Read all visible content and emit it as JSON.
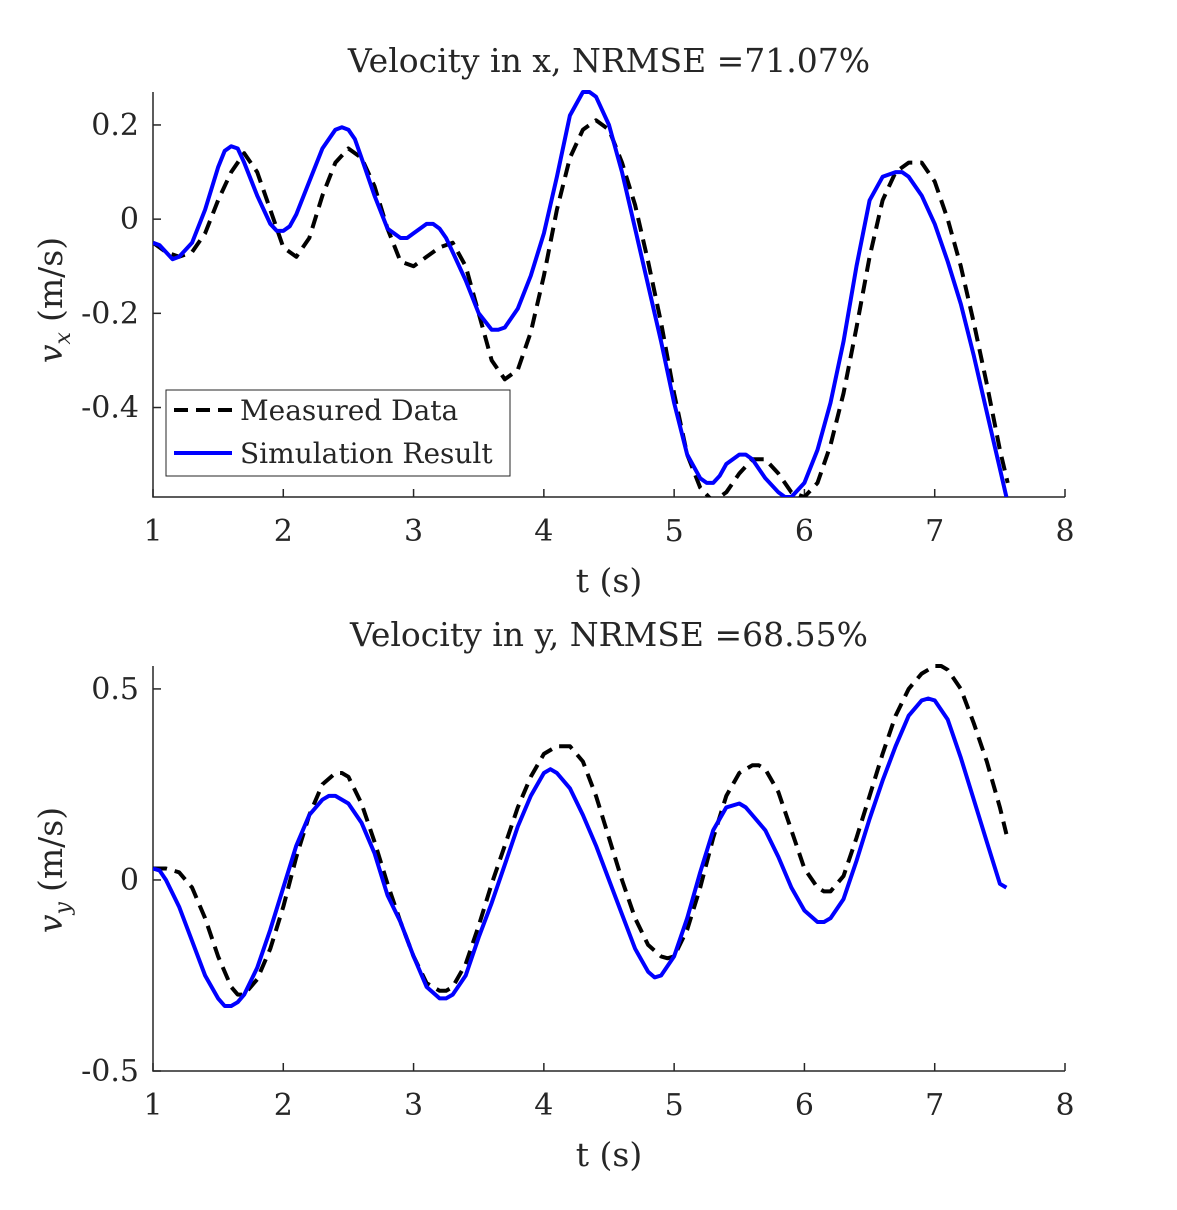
{
  "chart_data": [
    {
      "type": "line",
      "title": "Velocity in x, NRMSE =71.07%",
      "xlabel": "t (s)",
      "ylabel_main": "v",
      "ylabel_sub": "x",
      "ylabel_unit": "(m/s)",
      "xlim": [
        1,
        8
      ],
      "ylim": [
        -0.59,
        0.27
      ],
      "xticks": [
        1,
        2,
        3,
        4,
        5,
        6,
        7,
        8
      ],
      "xtick_labels": [
        "1",
        "2",
        "3",
        "4",
        "5",
        "6",
        "7",
        "8"
      ],
      "yticks": [
        0.2,
        0,
        -0.2,
        -0.4
      ],
      "ytick_labels": [
        "0.2",
        "0",
        "-0.2",
        "-0.4"
      ],
      "legend_position": "bottom-left",
      "series": [
        {
          "name": "Measured Data",
          "style": "dashed",
          "color": "#000000",
          "x": [
            1.0,
            1.1,
            1.2,
            1.3,
            1.4,
            1.5,
            1.6,
            1.7,
            1.8,
            1.9,
            2.0,
            2.1,
            2.2,
            2.3,
            2.4,
            2.5,
            2.6,
            2.7,
            2.8,
            2.9,
            3.0,
            3.1,
            3.2,
            3.3,
            3.4,
            3.5,
            3.6,
            3.7,
            3.8,
            3.9,
            4.0,
            4.1,
            4.2,
            4.3,
            4.4,
            4.5,
            4.6,
            4.7,
            4.8,
            4.9,
            5.0,
            5.1,
            5.2,
            5.3,
            5.4,
            5.5,
            5.6,
            5.7,
            5.8,
            5.9,
            6.0,
            6.1,
            6.2,
            6.3,
            6.4,
            6.5,
            6.6,
            6.7,
            6.8,
            6.9,
            7.0,
            7.1,
            7.2,
            7.3,
            7.4,
            7.5,
            7.56
          ],
          "y": [
            -0.05,
            -0.07,
            -0.08,
            -0.07,
            -0.03,
            0.04,
            0.1,
            0.14,
            0.1,
            0.02,
            -0.06,
            -0.08,
            -0.04,
            0.05,
            0.12,
            0.15,
            0.13,
            0.07,
            -0.02,
            -0.09,
            -0.1,
            -0.08,
            -0.06,
            -0.05,
            -0.1,
            -0.2,
            -0.3,
            -0.34,
            -0.32,
            -0.24,
            -0.12,
            0.02,
            0.13,
            0.19,
            0.21,
            0.19,
            0.12,
            0.03,
            -0.09,
            -0.22,
            -0.37,
            -0.5,
            -0.57,
            -0.6,
            -0.58,
            -0.54,
            -0.51,
            -0.51,
            -0.54,
            -0.58,
            -0.59,
            -0.56,
            -0.48,
            -0.37,
            -0.23,
            -0.08,
            0.04,
            0.1,
            0.12,
            0.12,
            0.08,
            0.0,
            -0.1,
            -0.22,
            -0.35,
            -0.49,
            -0.56
          ]
        },
        {
          "name": "Simulation Result",
          "style": "solid",
          "color": "#0000ff",
          "x": [
            1.0,
            1.05,
            1.1,
            1.15,
            1.2,
            1.3,
            1.4,
            1.5,
            1.55,
            1.6,
            1.65,
            1.7,
            1.8,
            1.9,
            1.95,
            2.0,
            2.05,
            2.1,
            2.2,
            2.3,
            2.4,
            2.45,
            2.5,
            2.55,
            2.6,
            2.7,
            2.8,
            2.9,
            2.95,
            3.0,
            3.1,
            3.15,
            3.2,
            3.25,
            3.3,
            3.4,
            3.5,
            3.6,
            3.65,
            3.7,
            3.8,
            3.9,
            4.0,
            4.1,
            4.2,
            4.3,
            4.35,
            4.4,
            4.5,
            4.6,
            4.7,
            4.8,
            4.9,
            5.0,
            5.1,
            5.2,
            5.25,
            5.3,
            5.35,
            5.4,
            5.5,
            5.55,
            5.6,
            5.7,
            5.8,
            5.85,
            5.9,
            6.0,
            6.1,
            6.2,
            6.3,
            6.4,
            6.5,
            6.6,
            6.7,
            6.75,
            6.8,
            6.9,
            7.0,
            7.1,
            7.2,
            7.3,
            7.4,
            7.5,
            7.55
          ],
          "y": [
            -0.05,
            -0.055,
            -0.07,
            -0.085,
            -0.08,
            -0.05,
            0.02,
            0.11,
            0.145,
            0.155,
            0.15,
            0.12,
            0.05,
            -0.01,
            -0.025,
            -0.025,
            -0.015,
            0.01,
            0.08,
            0.15,
            0.19,
            0.195,
            0.19,
            0.17,
            0.13,
            0.05,
            -0.02,
            -0.04,
            -0.04,
            -0.03,
            -0.01,
            -0.01,
            -0.02,
            -0.04,
            -0.07,
            -0.13,
            -0.2,
            -0.235,
            -0.235,
            -0.23,
            -0.19,
            -0.12,
            -0.03,
            0.09,
            0.22,
            0.27,
            0.27,
            0.26,
            0.2,
            0.1,
            -0.02,
            -0.14,
            -0.26,
            -0.39,
            -0.5,
            -0.55,
            -0.56,
            -0.56,
            -0.545,
            -0.52,
            -0.5,
            -0.5,
            -0.51,
            -0.55,
            -0.58,
            -0.59,
            -0.59,
            -0.56,
            -0.49,
            -0.39,
            -0.26,
            -0.1,
            0.04,
            0.09,
            0.1,
            0.1,
            0.09,
            0.05,
            -0.01,
            -0.09,
            -0.18,
            -0.29,
            -0.41,
            -0.53,
            -0.59
          ]
        }
      ]
    },
    {
      "type": "line",
      "title": "Velocity in y, NRMSE =68.55%",
      "xlabel": "t (s)",
      "ylabel_main": "v",
      "ylabel_sub": "y",
      "ylabel_unit": "(m/s)",
      "xlim": [
        1,
        8
      ],
      "ylim": [
        -0.5,
        0.56
      ],
      "xticks": [
        1,
        2,
        3,
        4,
        5,
        6,
        7,
        8
      ],
      "xtick_labels": [
        "1",
        "2",
        "3",
        "4",
        "5",
        "6",
        "7",
        "8"
      ],
      "yticks": [
        0.5,
        0,
        -0.5
      ],
      "ytick_labels": [
        "0.5",
        "0",
        "-0.5"
      ],
      "series": [
        {
          "name": "Measured Data",
          "style": "dashed",
          "color": "#000000",
          "x": [
            1.0,
            1.1,
            1.2,
            1.3,
            1.4,
            1.5,
            1.6,
            1.65,
            1.7,
            1.8,
            1.9,
            2.0,
            2.1,
            2.2,
            2.3,
            2.4,
            2.45,
            2.5,
            2.6,
            2.7,
            2.8,
            2.9,
            3.0,
            3.1,
            3.2,
            3.25,
            3.3,
            3.4,
            3.5,
            3.6,
            3.7,
            3.8,
            3.9,
            4.0,
            4.1,
            4.15,
            4.2,
            4.3,
            4.4,
            4.5,
            4.6,
            4.7,
            4.8,
            4.9,
            4.95,
            5.0,
            5.1,
            5.2,
            5.3,
            5.4,
            5.5,
            5.6,
            5.65,
            5.7,
            5.8,
            5.9,
            6.0,
            6.1,
            6.15,
            6.2,
            6.3,
            6.4,
            6.5,
            6.6,
            6.7,
            6.8,
            6.9,
            7.0,
            7.05,
            7.1,
            7.2,
            7.3,
            7.4,
            7.5,
            7.55
          ],
          "y": [
            0.03,
            0.03,
            0.02,
            -0.02,
            -0.1,
            -0.2,
            -0.28,
            -0.3,
            -0.3,
            -0.26,
            -0.18,
            -0.07,
            0.06,
            0.17,
            0.25,
            0.28,
            0.28,
            0.27,
            0.2,
            0.1,
            -0.01,
            -0.11,
            -0.2,
            -0.27,
            -0.29,
            -0.29,
            -0.28,
            -0.22,
            -0.12,
            -0.01,
            0.09,
            0.19,
            0.27,
            0.33,
            0.35,
            0.35,
            0.35,
            0.31,
            0.22,
            0.11,
            0.0,
            -0.1,
            -0.17,
            -0.2,
            -0.205,
            -0.2,
            -0.13,
            -0.02,
            0.11,
            0.22,
            0.28,
            0.3,
            0.3,
            0.29,
            0.23,
            0.13,
            0.03,
            -0.02,
            -0.03,
            -0.03,
            0.01,
            0.11,
            0.22,
            0.33,
            0.43,
            0.5,
            0.54,
            0.56,
            0.56,
            0.55,
            0.5,
            0.41,
            0.31,
            0.19,
            0.12
          ]
        },
        {
          "name": "Simulation Result",
          "style": "solid",
          "color": "#0000ff",
          "x": [
            1.0,
            1.05,
            1.1,
            1.2,
            1.3,
            1.4,
            1.5,
            1.55,
            1.6,
            1.65,
            1.7,
            1.8,
            1.9,
            2.0,
            2.1,
            2.2,
            2.3,
            2.35,
            2.4,
            2.5,
            2.6,
            2.7,
            2.8,
            2.9,
            3.0,
            3.1,
            3.2,
            3.25,
            3.3,
            3.4,
            3.5,
            3.6,
            3.7,
            3.8,
            3.9,
            4.0,
            4.05,
            4.1,
            4.2,
            4.3,
            4.4,
            4.5,
            4.6,
            4.7,
            4.8,
            4.85,
            4.9,
            5.0,
            5.1,
            5.2,
            5.3,
            5.4,
            5.5,
            5.55,
            5.6,
            5.7,
            5.8,
            5.9,
            6.0,
            6.1,
            6.15,
            6.2,
            6.3,
            6.4,
            6.5,
            6.6,
            6.7,
            6.8,
            6.9,
            6.95,
            7.0,
            7.1,
            7.2,
            7.3,
            7.4,
            7.5,
            7.55
          ],
          "y": [
            0.03,
            0.025,
            0.0,
            -0.07,
            -0.16,
            -0.25,
            -0.31,
            -0.33,
            -0.33,
            -0.32,
            -0.3,
            -0.23,
            -0.13,
            -0.02,
            0.09,
            0.17,
            0.21,
            0.22,
            0.22,
            0.2,
            0.15,
            0.07,
            -0.04,
            -0.11,
            -0.2,
            -0.28,
            -0.31,
            -0.31,
            -0.3,
            -0.25,
            -0.15,
            -0.06,
            0.04,
            0.14,
            0.22,
            0.28,
            0.29,
            0.28,
            0.24,
            0.17,
            0.09,
            0.0,
            -0.09,
            -0.18,
            -0.24,
            -0.255,
            -0.25,
            -0.2,
            -0.1,
            0.02,
            0.13,
            0.19,
            0.2,
            0.19,
            0.17,
            0.13,
            0.06,
            -0.02,
            -0.08,
            -0.11,
            -0.11,
            -0.1,
            -0.05,
            0.05,
            0.16,
            0.26,
            0.35,
            0.43,
            0.47,
            0.475,
            0.47,
            0.42,
            0.32,
            0.21,
            0.1,
            -0.01,
            -0.02
          ]
        }
      ]
    }
  ]
}
